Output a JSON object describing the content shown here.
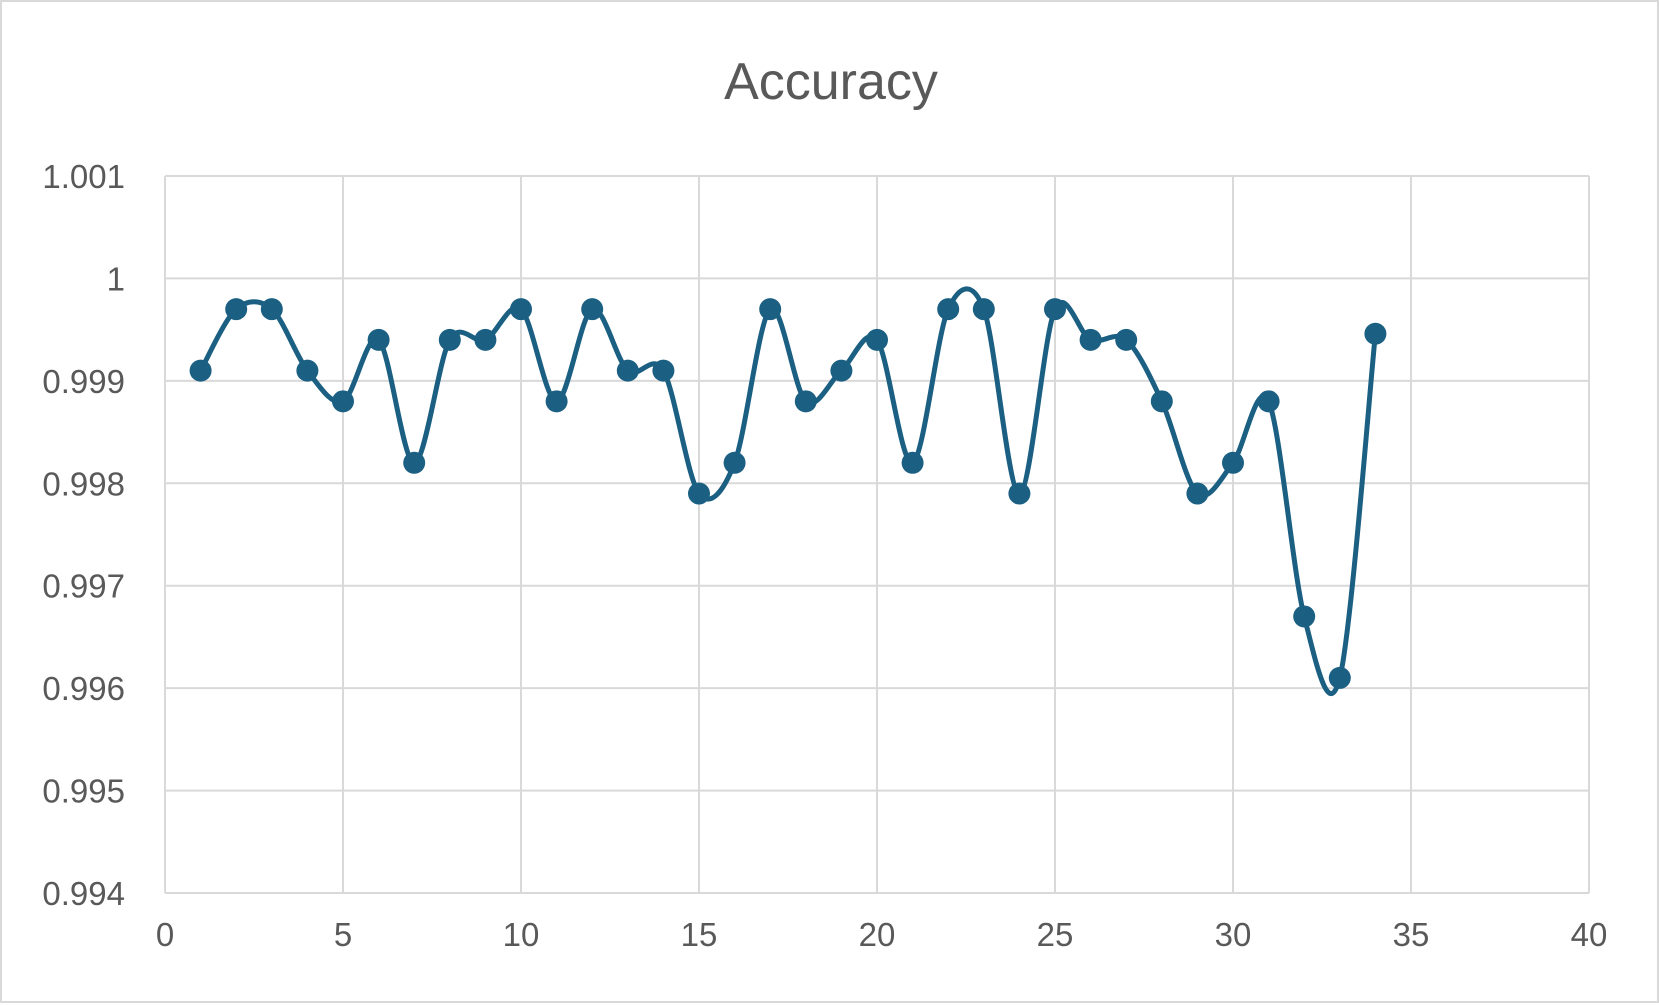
{
  "chart_data": {
    "type": "line",
    "title": "Accuracy",
    "xlabel": "",
    "ylabel": "",
    "xlim": [
      0,
      40
    ],
    "ylim": [
      0.994,
      1.001
    ],
    "x_ticks": [
      0,
      5,
      10,
      15,
      20,
      25,
      30,
      35,
      40
    ],
    "y_ticks": [
      0.994,
      0.995,
      0.996,
      0.997,
      0.998,
      0.999,
      1,
      1.001
    ],
    "x_tick_labels": [
      "0",
      "5",
      "10",
      "15",
      "20",
      "25",
      "30",
      "35",
      "40"
    ],
    "y_tick_labels": [
      "0.994",
      "0.995",
      "0.996",
      "0.997",
      "0.998",
      "0.999",
      "1",
      "1.001"
    ],
    "grid": true,
    "smooth": true,
    "markers": true,
    "legend": "none",
    "colors": {
      "series": "#1b5f82",
      "grid": "#d9d9d9",
      "text": "#595959"
    },
    "series": [
      {
        "x": [
          1,
          2,
          3,
          4,
          5,
          6,
          7,
          8,
          9,
          10,
          11,
          12,
          13,
          14,
          15,
          16,
          17,
          18,
          19,
          20,
          21,
          22,
          23,
          24,
          25,
          26,
          27,
          28,
          29,
          30,
          31,
          32,
          33,
          34
        ],
        "values": [
          0.9991,
          0.9997,
          0.9997,
          0.9991,
          0.9988,
          0.9994,
          0.9982,
          0.9994,
          0.9994,
          0.9997,
          0.9988,
          0.9997,
          0.9991,
          0.9991,
          0.9979,
          0.9982,
          0.9997,
          0.9988,
          0.9991,
          0.9994,
          0.9982,
          0.9997,
          0.9997,
          0.9979,
          0.9997,
          0.9994,
          0.9994,
          0.9988,
          0.9979,
          0.9982,
          0.9988,
          0.9967,
          0.9961,
          0.99946
        ]
      }
    ]
  }
}
